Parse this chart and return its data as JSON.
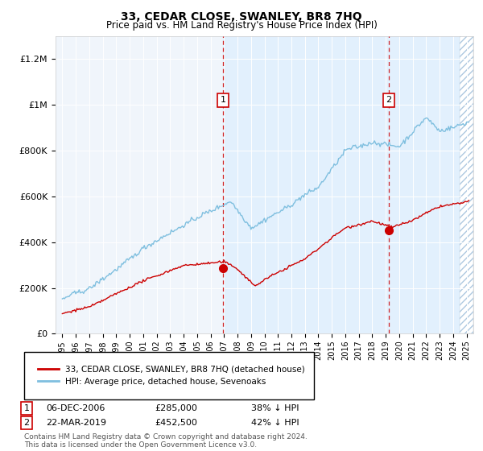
{
  "title": "33, CEDAR CLOSE, SWANLEY, BR8 7HQ",
  "subtitle": "Price paid vs. HM Land Registry's House Price Index (HPI)",
  "hpi_color": "#7fbfdf",
  "hpi_fill_color": "#ddeeff",
  "price_color": "#cc0000",
  "marker_color": "#cc0000",
  "background_color": "#eef5fb",
  "legend_label_price": "33, CEDAR CLOSE, SWANLEY, BR8 7HQ (detached house)",
  "legend_label_hpi": "HPI: Average price, detached house, Sevenoaks",
  "ann1_x": 2006.92,
  "ann1_price": 285000,
  "ann2_x": 2019.22,
  "ann2_price": 452500,
  "footer": "Contains HM Land Registry data © Crown copyright and database right 2024.\nThis data is licensed under the Open Government Licence v3.0.",
  "ylim": [
    0,
    1300000
  ],
  "xlim": [
    1994.5,
    2025.5
  ],
  "hatch_start": 2024.5
}
